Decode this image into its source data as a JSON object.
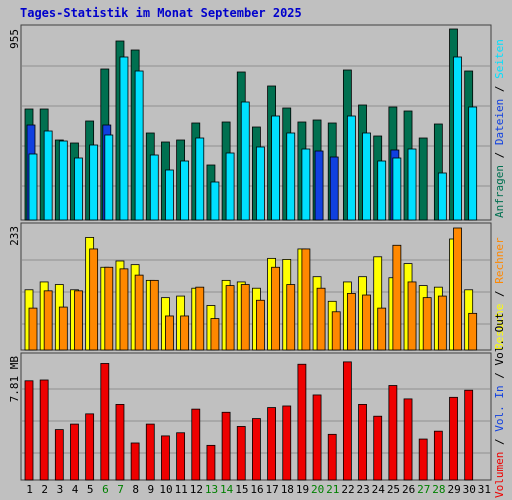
{
  "title": "Tages-Statistik im Monat September 2025",
  "colors": {
    "background": "#c0c0c0",
    "title": "#0000cc",
    "weekday": "#000000",
    "weekend": "#008000",
    "anfragen": "#007050",
    "dateien": "#1040e0",
    "seiten": "#00e0ff",
    "besuche": "#ffff00",
    "rechner": "#ff8800",
    "volumen": "#ee0000",
    "grid": "#909090"
  },
  "panels": {
    "top": {
      "max_label": "955",
      "max_value": 955,
      "legend": [
        {
          "text": "Anfragen",
          "color": "#007050"
        },
        {
          "text": "Dateien",
          "color": "#1040e0"
        },
        {
          "text": "Seiten",
          "color": "#00e0ff"
        }
      ]
    },
    "mid": {
      "max_label": "233",
      "max_value": 233,
      "legend": [
        {
          "text": "Besuche",
          "color": "#ffff00"
        },
        {
          "text": "Rechner",
          "color": "#ff8800"
        }
      ]
    },
    "bottom": {
      "max_label": "7.81 MB",
      "max_value": 7.81,
      "legend": [
        {
          "text": "Volumen",
          "color": "#ee0000"
        },
        {
          "text": "Vol. In",
          "color": "#1040e0"
        },
        {
          "text": "Vol. Out",
          "color": "#000000"
        }
      ]
    }
  },
  "chart_data": {
    "type": "bar",
    "title": "Tages-Statistik im Monat September 2025",
    "categories": [
      "1",
      "2",
      "3",
      "4",
      "5",
      "6",
      "7",
      "8",
      "9",
      "10",
      "11",
      "12",
      "13",
      "14",
      "15",
      "16",
      "17",
      "18",
      "19",
      "20",
      "21",
      "22",
      "23",
      "24",
      "25",
      "26",
      "27",
      "28",
      "29",
      "30",
      "31"
    ],
    "weekend_days": [
      "6",
      "7",
      "13",
      "14",
      "20",
      "21",
      "27",
      "28"
    ],
    "series": [
      {
        "name": "Anfragen",
        "values": [
          555,
          555,
          400,
          385,
          495,
          755,
          895,
          850,
          435,
          390,
          400,
          485,
          275,
          490,
          740,
          465,
          670,
          560,
          490,
          500,
          485,
          750,
          575,
          420,
          565,
          545,
          410,
          480,
          955,
          745,
          0
        ]
      },
      {
        "name": "Dateien",
        "values": [
          475,
          0,
          0,
          0,
          0,
          475,
          0,
          0,
          0,
          0,
          0,
          0,
          0,
          0,
          0,
          0,
          0,
          0,
          0,
          345,
          315,
          0,
          0,
          0,
          350,
          0,
          0,
          0,
          0,
          0,
          0
        ]
      },
      {
        "name": "Seiten",
        "values": [
          330,
          445,
          395,
          310,
          375,
          425,
          815,
          745,
          325,
          250,
          295,
          410,
          190,
          335,
          590,
          365,
          520,
          435,
          355,
          0,
          0,
          520,
          435,
          295,
          310,
          355,
          0,
          235,
          815,
          565,
          0
        ]
      },
      {
        "name": "Besuche",
        "values": [
          115,
          130,
          125,
          115,
          215,
          158,
          170,
          163,
          133,
          100,
          103,
          118,
          85,
          133,
          130,
          118,
          175,
          173,
          193,
          140,
          93,
          130,
          140,
          178,
          138,
          165,
          123,
          120,
          212,
          115,
          0
        ]
      },
      {
        "name": "Rechner",
        "values": [
          80,
          113,
          82,
          113,
          193,
          158,
          155,
          143,
          133,
          65,
          65,
          120,
          60,
          123,
          125,
          95,
          158,
          125,
          193,
          118,
          73,
          108,
          105,
          80,
          200,
          130,
          100,
          103,
          233,
          70,
          0
        ]
      },
      {
        "name": "Volumen",
        "values": [
          6.3,
          6.35,
          3.2,
          3.55,
          4.2,
          7.4,
          4.8,
          2.35,
          3.55,
          2.8,
          3.0,
          4.5,
          2.2,
          4.3,
          3.4,
          3.9,
          4.6,
          4.7,
          7.35,
          5.4,
          2.9,
          7.5,
          4.8,
          4.05,
          6.0,
          5.15,
          2.6,
          3.1,
          5.25,
          5.7,
          0
        ]
      }
    ]
  }
}
